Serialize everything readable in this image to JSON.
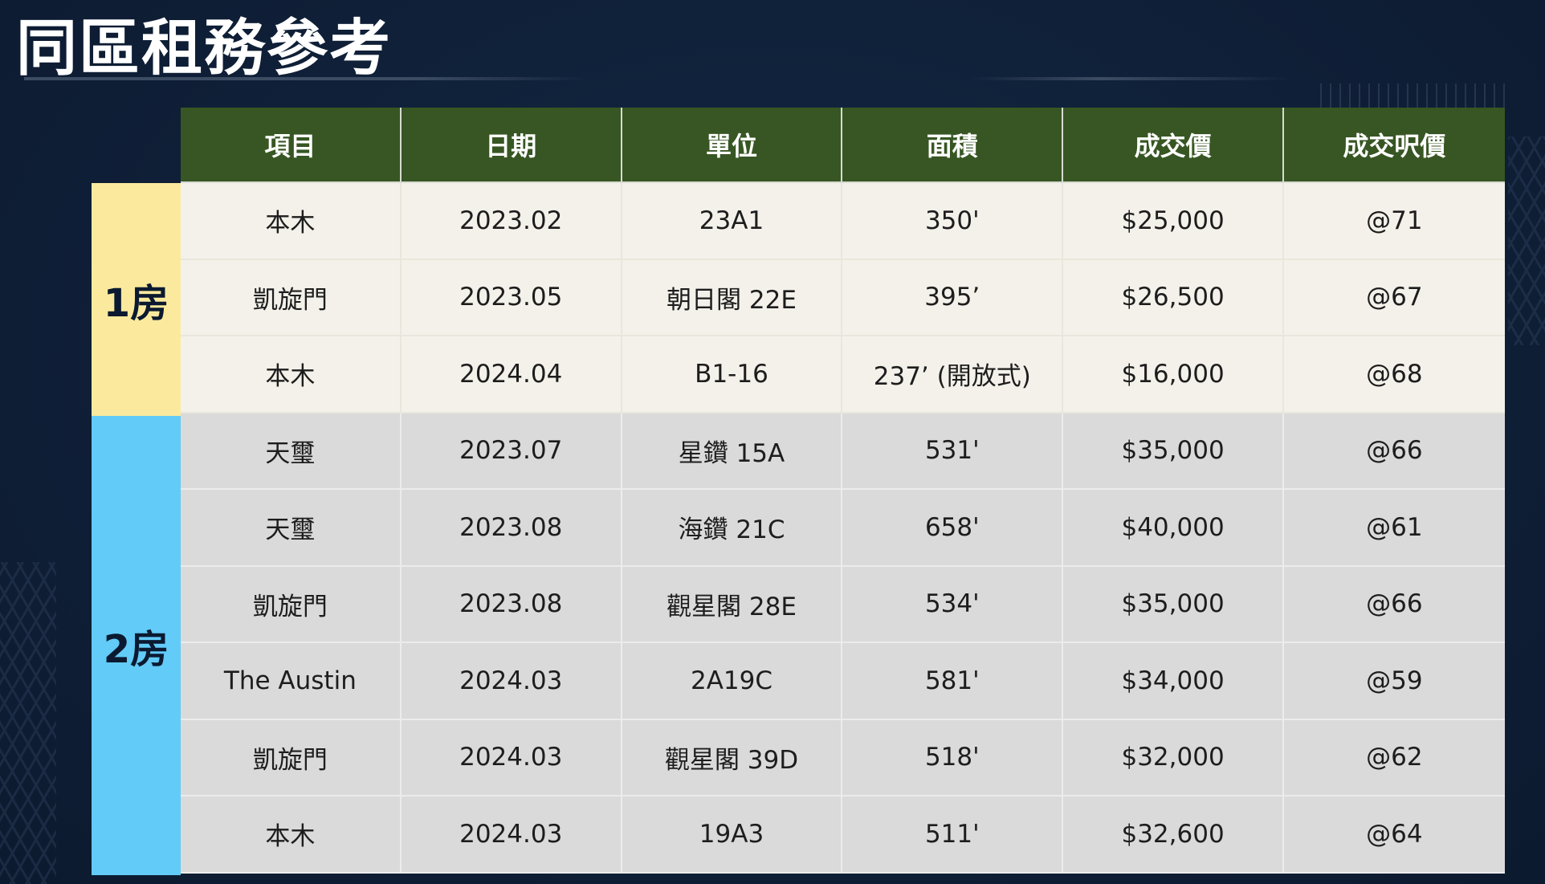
{
  "title": "同區租務參考",
  "table": {
    "headers": [
      "項目",
      "日期",
      "單位",
      "面積",
      "成交價",
      "成交呎價"
    ],
    "groups": [
      {
        "label": "1房",
        "color": "#fbea9d",
        "rows": [
          [
            "本木",
            "2023.02",
            "23A1",
            "350'",
            "$25,000",
            "@71"
          ],
          [
            "凱旋門",
            "2023.05",
            "朝日閣 22E",
            "395’",
            "$26,500",
            "@67"
          ],
          [
            "本木",
            "2024.04",
            "B1-16",
            "237’ (開放式)",
            "$16,000",
            "@68"
          ]
        ]
      },
      {
        "label": "2房",
        "color": "#62cbf7",
        "rows": [
          [
            "天璽",
            "2023.07",
            "星鑽 15A",
            "531'",
            "$35,000",
            "@66"
          ],
          [
            "天璽",
            "2023.08",
            "海鑽 21C",
            "658'",
            "$40,000",
            "@61"
          ],
          [
            "凱旋門",
            "2023.08",
            "觀星閣 28E",
            "534'",
            "$35,000",
            "@66"
          ],
          [
            "The Austin",
            "2024.03",
            "2A19C",
            "581'",
            "$34,000",
            "@59"
          ],
          [
            "凱旋門",
            "2024.03",
            "觀星閣 39D",
            "518'",
            "$32,000",
            "@62"
          ],
          [
            "本木",
            "2024.03",
            "19A3",
            "511'",
            "$32,600",
            "@64"
          ]
        ]
      }
    ]
  },
  "colors": {
    "header_bg": "#375623",
    "background": "#10213a"
  }
}
